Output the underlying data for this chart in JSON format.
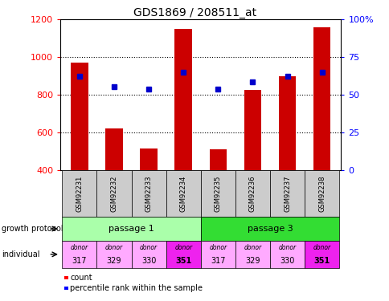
{
  "title": "GDS1869 / 208511_at",
  "samples": [
    "GSM92231",
    "GSM92232",
    "GSM92233",
    "GSM92234",
    "GSM92235",
    "GSM92236",
    "GSM92237",
    "GSM92238"
  ],
  "counts": [
    970,
    620,
    515,
    1150,
    510,
    825,
    900,
    1160
  ],
  "percentile_values": [
    900,
    845,
    830,
    920,
    830,
    870,
    900,
    920
  ],
  "ylim": [
    400,
    1200
  ],
  "yticks_left": [
    400,
    600,
    800,
    1000,
    1200
  ],
  "yticks_right_labels": [
    "0",
    "25",
    "50",
    "75",
    "100%"
  ],
  "bar_color": "#cc0000",
  "dot_color": "#0000cc",
  "passage_1_color": "#aaffaa",
  "passage_3_color": "#33dd33",
  "donor_colors_light": "#ffaaff",
  "donor_colors_dark": "#ee22ee",
  "donor_numbers": [
    "317",
    "329",
    "330",
    "351",
    "317",
    "329",
    "330",
    "351"
  ],
  "donor_bold": [
    false,
    false,
    false,
    true,
    false,
    false,
    false,
    true
  ],
  "passage_split": 4,
  "growth_protocol_label": "growth protocol",
  "individual_label": "individual",
  "legend_count": "count",
  "legend_percentile": "percentile rank within the sample",
  "bar_width": 0.5,
  "gsm_bg": "#cccccc"
}
